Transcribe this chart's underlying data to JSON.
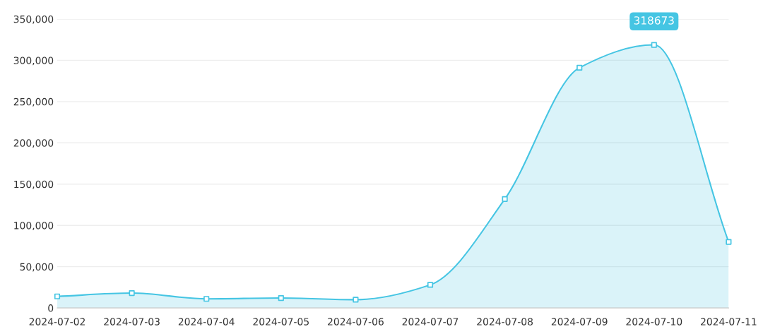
{
  "chart_data": {
    "type": "area",
    "categories": [
      "2024-07-02",
      "2024-07-03",
      "2024-07-04",
      "2024-07-05",
      "2024-07-06",
      "2024-07-07",
      "2024-07-08",
      "2024-07-09",
      "2024-07-10",
      "2024-07-11"
    ],
    "series": [
      {
        "color": "#45c5e3",
        "values": [
          14000,
          18000,
          11000,
          12000,
          10000,
          28000,
          132000,
          291000,
          318673,
          80000
        ]
      }
    ],
    "ylim": [
      0,
      350000
    ],
    "yticks": [
      0,
      {
        "value": 50000,
        "label": "50,000"
      },
      {
        "value": 100000,
        "label": "100,000"
      },
      {
        "value": 150000,
        "label": "150,000"
      },
      {
        "value": 200000,
        "label": "200,000"
      },
      {
        "value": 250000,
        "label": "250,000"
      },
      {
        "value": 300000,
        "label": "300,000"
      },
      {
        "value": 350000,
        "label": "350,000"
      }
    ],
    "annotations": [
      {
        "text": "318673",
        "x": "2024-07-10",
        "y": 318673
      }
    ],
    "grid": "y",
    "marker": "square",
    "line_style": "solid",
    "legend": false
  }
}
